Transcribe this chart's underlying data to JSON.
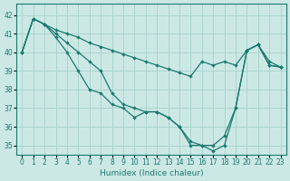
{
  "xlabel": "Humidex (Indice chaleur)",
  "bg_color": "#cce8e5",
  "grid_color": "#aad4cf",
  "line_color": "#1a7a6e",
  "xlim": [
    -0.5,
    23.5
  ],
  "ylim": [
    34.5,
    42.6
  ],
  "yticks": [
    35,
    36,
    37,
    38,
    39,
    40,
    41,
    42
  ],
  "xticks": [
    0,
    1,
    2,
    3,
    4,
    5,
    6,
    7,
    8,
    9,
    10,
    11,
    12,
    13,
    14,
    15,
    16,
    17,
    18,
    19,
    20,
    21,
    22,
    23
  ],
  "line_upper_x": [
    0,
    1,
    2,
    3,
    4,
    5,
    6,
    7,
    8,
    9,
    10,
    11,
    12,
    13,
    14,
    15,
    16,
    17,
    18,
    19,
    20,
    21,
    22,
    23
  ],
  "line_upper_y": [
    40.0,
    41.8,
    41.5,
    41.2,
    41.0,
    40.8,
    40.5,
    40.3,
    40.1,
    39.9,
    39.7,
    39.5,
    39.3,
    39.1,
    38.9,
    38.7,
    39.5,
    39.3,
    39.5,
    39.3,
    40.1,
    40.4,
    39.5,
    39.2
  ],
  "line_mid_x": [
    0,
    1,
    2,
    3,
    4,
    5,
    6,
    7,
    8,
    9,
    10,
    11,
    12,
    13,
    14,
    15,
    16,
    17,
    18,
    19,
    20,
    21,
    22,
    23
  ],
  "line_mid_y": [
    40.0,
    41.8,
    41.5,
    41.0,
    40.5,
    40.0,
    39.5,
    39.0,
    37.8,
    37.2,
    37.0,
    36.8,
    36.8,
    36.5,
    36.0,
    35.2,
    35.0,
    35.0,
    35.5,
    37.0,
    40.1,
    40.4,
    39.3,
    39.2
  ],
  "line_low_x": [
    0,
    1,
    2,
    3,
    4,
    5,
    6,
    7,
    8,
    9,
    10,
    11,
    12,
    13,
    14,
    15,
    16,
    17,
    18,
    19,
    20,
    21,
    22,
    23
  ],
  "line_low_y": [
    40.0,
    41.8,
    41.5,
    40.8,
    40.0,
    39.0,
    38.0,
    37.8,
    37.2,
    37.0,
    36.5,
    36.8,
    36.8,
    36.5,
    36.0,
    35.0,
    35.0,
    34.7,
    35.0,
    37.0,
    40.1,
    40.4,
    39.3,
    39.2
  ]
}
